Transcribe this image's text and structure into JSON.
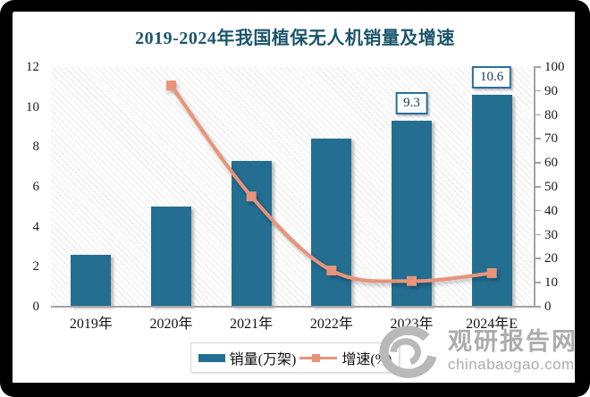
{
  "title": "2019-2024年我国植保无人机销量及增速",
  "colors": {
    "bar": "#236E91",
    "line": "#E8947A",
    "title_text": "#1B566C",
    "label_box_border": "#2A6F9B",
    "label_text": "#17375E",
    "axis_line": "#A3A3A3",
    "watermark": "#ACACAC"
  },
  "chart_data": {
    "type": "bar+line combo",
    "title": "2019-2024年我国植保无人机销量及增速",
    "categories": [
      "2019年",
      "2020年",
      "2021年",
      "2022年",
      "2023年",
      "2024年E"
    ],
    "series": [
      {
        "name": "销量(万架)",
        "type": "bar",
        "axis": "left",
        "values": [
          2.6,
          5.0,
          7.3,
          8.4,
          9.3,
          10.6
        ],
        "point_labels": [
          null,
          null,
          null,
          null,
          "9.3",
          "10.6"
        ]
      },
      {
        "name": "增速(%)",
        "type": "line",
        "axis": "right",
        "values": [
          null,
          92.3,
          46.0,
          15.1,
          10.7,
          14.0
        ]
      }
    ],
    "left_axis": {
      "min": 0,
      "max": 12,
      "step": 2
    },
    "right_axis": {
      "min": 0,
      "max": 100,
      "step": 10
    },
    "grid": false,
    "legend_position": "bottom",
    "plot_background": "diagonal-hatch"
  },
  "legend": {
    "items": [
      {
        "label": "销量(万架)"
      },
      {
        "label": "增速(%)"
      }
    ]
  },
  "watermark": {
    "brand": "观研报告网",
    "domain": "chinabaogao.com"
  }
}
